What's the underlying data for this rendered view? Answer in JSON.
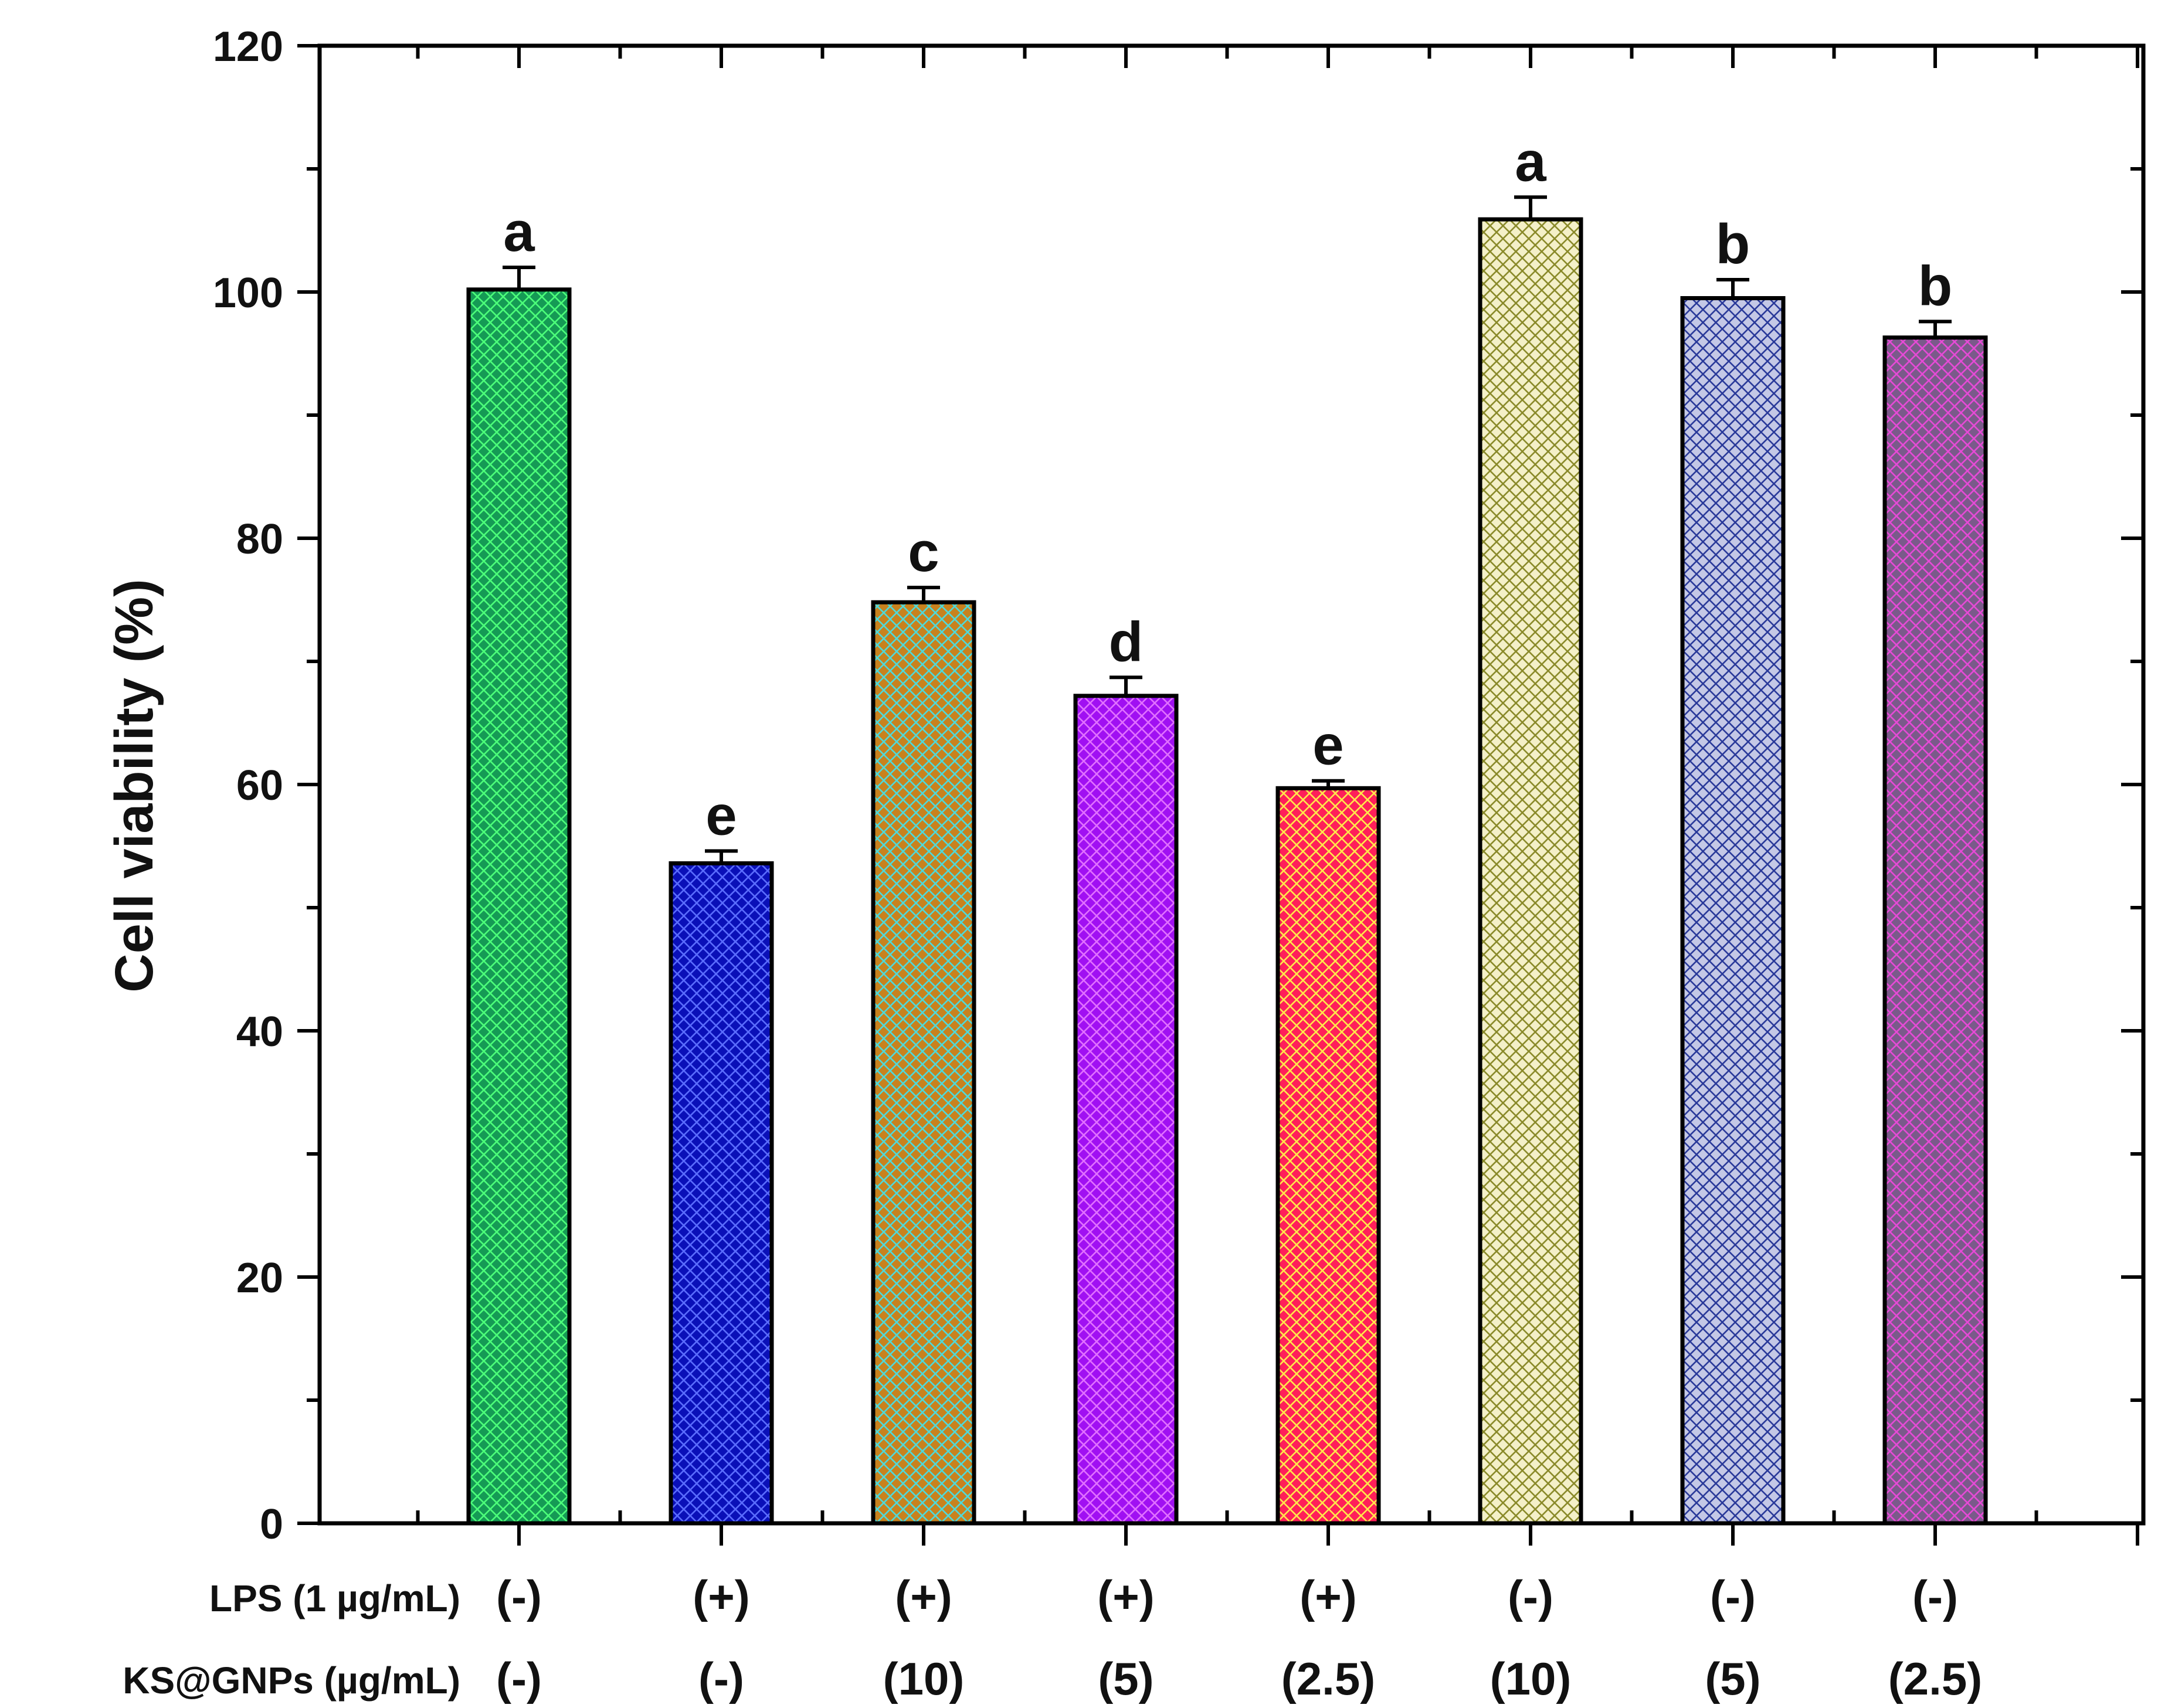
{
  "chart_data": {
    "type": "bar",
    "title": "",
    "xlabel": "",
    "ylabel": "Cell viability (%)",
    "ylim": [
      0,
      120
    ],
    "yticks": [
      0,
      20,
      40,
      60,
      80,
      100,
      120
    ],
    "grid": false,
    "bars": [
      {
        "value": 100.2,
        "error": 1.8,
        "letter": "a",
        "lps": "(-)",
        "ks": "(-)",
        "color": "#159a55",
        "hatch": "#4cff7a"
      },
      {
        "value": 53.6,
        "error": 1.0,
        "letter": "e",
        "lps": "(+)",
        "ks": "(-)",
        "color": "#0a10b8",
        "hatch": "#5a6cff"
      },
      {
        "value": 74.8,
        "error": 1.2,
        "letter": "c",
        "lps": "(+)",
        "ks": "(10)",
        "color": "#c8821e",
        "hatch": "#4fd9d9"
      },
      {
        "value": 67.2,
        "error": 1.5,
        "letter": "d",
        "lps": "(+)",
        "ks": "(5)",
        "color": "#a010f2",
        "hatch": "#e070ff"
      },
      {
        "value": 59.7,
        "error": 0.6,
        "letter": "e",
        "lps": "(+)",
        "ks": "(2.5)",
        "color": "#ff1f5a",
        "hatch": "#ffe84a"
      },
      {
        "value": 105.9,
        "error": 1.8,
        "letter": "a",
        "lps": "(-)",
        "ks": "(10)",
        "color": "#f4f0c8",
        "hatch": "#8a8a2a"
      },
      {
        "value": 99.5,
        "error": 1.5,
        "letter": "b",
        "lps": "(-)",
        "ks": "(5)",
        "color": "#c4c8e6",
        "hatch": "#2a3a9a"
      },
      {
        "value": 96.3,
        "error": 1.3,
        "letter": "b",
        "lps": "(-)",
        "ks": "(2.5)",
        "color": "#7a5a8a",
        "hatch": "#e64ad6"
      }
    ],
    "row_labels": {
      "lps": "LPS (1 µg/mL)",
      "ks": "KS@GNPs (µg/mL)"
    }
  }
}
